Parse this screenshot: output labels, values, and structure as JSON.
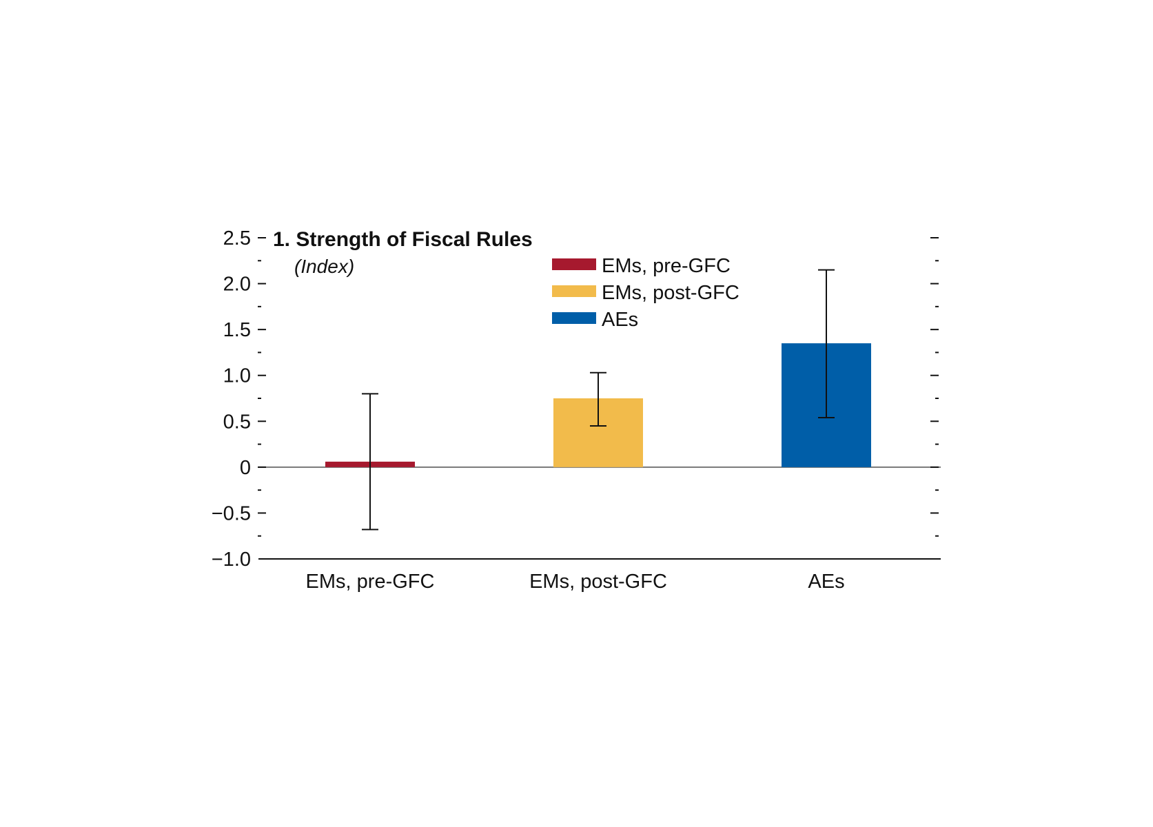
{
  "chart_data": {
    "type": "bar",
    "title": "1. Strength of Fiscal Rules",
    "subtitle": "(Index)",
    "categories": [
      "EMs, pre-GFC",
      "EMs, post-GFC",
      "AEs"
    ],
    "values": [
      0.06,
      0.75,
      1.35
    ],
    "error_low": [
      -0.68,
      0.45,
      0.54
    ],
    "error_high": [
      0.8,
      1.03,
      2.15
    ],
    "colors": [
      "#a6192e",
      "#f2bb4b",
      "#005ea8"
    ],
    "legend": [
      "EMs, pre-GFC",
      "EMs, post-GFC",
      "AEs"
    ],
    "legend_position": "top-center",
    "ylim": [
      -1.0,
      2.5
    ],
    "yticks": [
      -1.0,
      -0.5,
      0,
      0.5,
      1.0,
      1.5,
      2.0,
      2.5
    ],
    "ytick_labels": [
      "−1.0",
      "−0.5",
      "0",
      "0.5",
      "1.0",
      "1.5",
      "2.0",
      "2.5"
    ],
    "grid": false,
    "xlabel": "",
    "ylabel": ""
  }
}
